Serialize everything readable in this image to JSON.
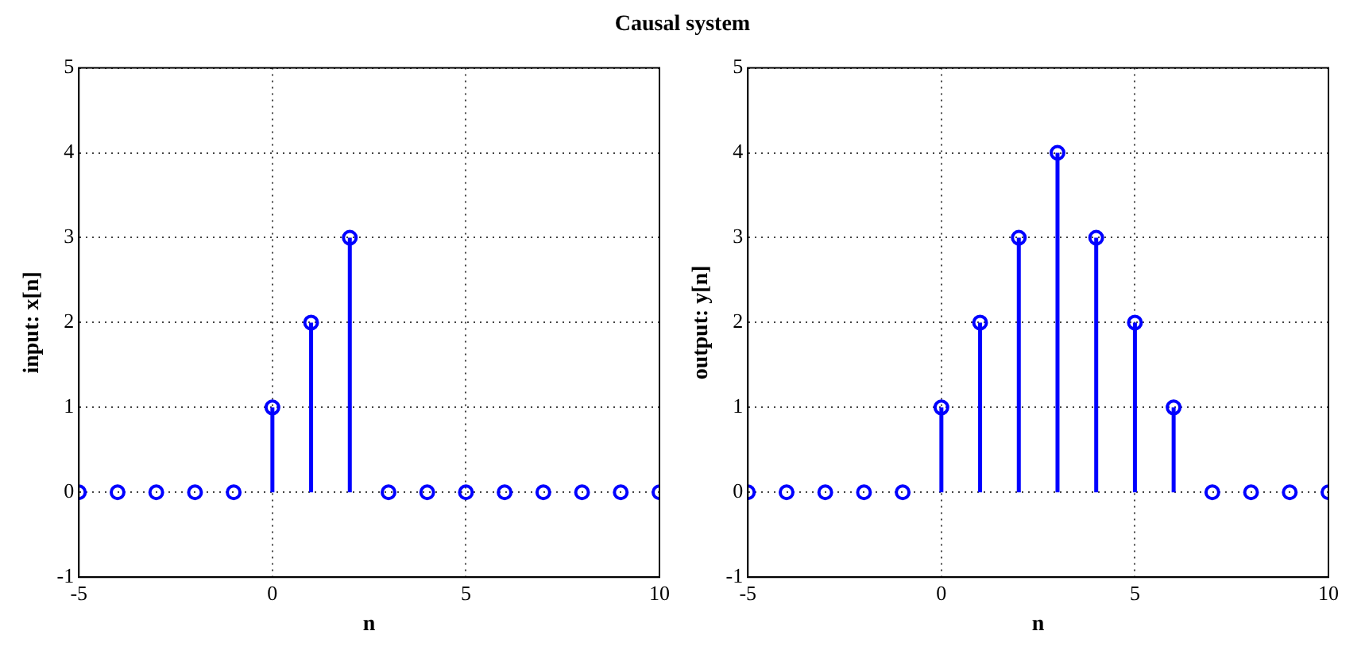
{
  "chart_data": [
    {
      "type": "lollipop",
      "title": "Causal system",
      "xlabel": "n",
      "ylabel": "input: x[n]",
      "x": [
        -5,
        -4,
        -3,
        -2,
        -1,
        0,
        1,
        2,
        3,
        4,
        5,
        6,
        7,
        8,
        9,
        10
      ],
      "series": [
        {
          "color": "#0000ff",
          "values": [
            0,
            0,
            0,
            0,
            0,
            1,
            2,
            3,
            0,
            0,
            0,
            0,
            0,
            0,
            0,
            0
          ]
        }
      ],
      "xlim": [
        -5,
        10
      ],
      "xticks": [
        -5,
        0,
        5,
        10
      ],
      "ylim": [
        -1,
        5
      ],
      "yticks": [
        -1,
        0,
        1,
        2,
        3,
        4,
        5
      ],
      "grid": true,
      "marker": "circle",
      "legend": false
    },
    {
      "type": "lollipop",
      "xlabel": "n",
      "ylabel": "output: y[n]",
      "x": [
        -5,
        -4,
        -3,
        -2,
        -1,
        0,
        1,
        2,
        3,
        4,
        5,
        6,
        7,
        8,
        9,
        10
      ],
      "series": [
        {
          "color": "#0000ff",
          "values": [
            0,
            0,
            0,
            0,
            0,
            1,
            2,
            3,
            4,
            3,
            2,
            1,
            0,
            0,
            0,
            0
          ]
        }
      ],
      "xlim": [
        -5,
        10
      ],
      "xticks": [
        -5,
        0,
        5,
        10
      ],
      "ylim": [
        -1,
        5
      ],
      "yticks": [
        -1,
        0,
        1,
        2,
        3,
        4,
        5
      ],
      "grid": true,
      "marker": "circle",
      "legend": false
    }
  ]
}
